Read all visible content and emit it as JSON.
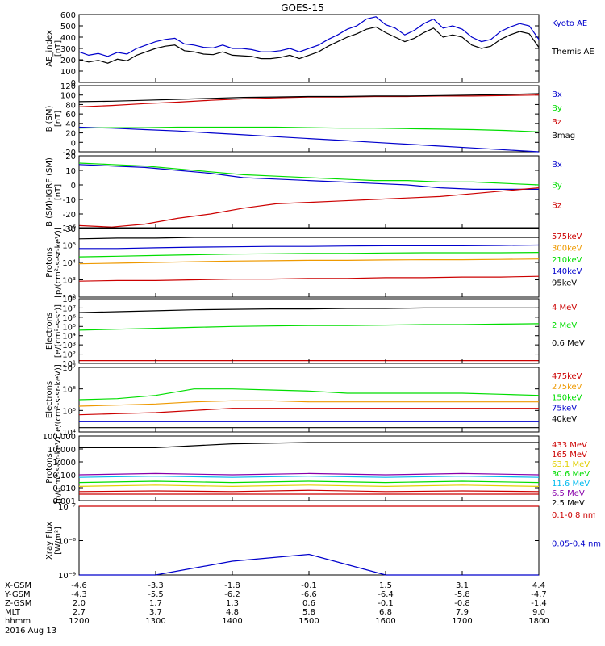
{
  "chart_data": {
    "type": "line",
    "title": "GOES-15",
    "colors": {
      "black": "#000000",
      "red": "#cc0000",
      "orange": "#ee9900",
      "yellow": "#e0d000",
      "green": "#00dd00",
      "cyan": "#00bbee",
      "blue": "#0000cc",
      "purple": "#8800aa"
    },
    "x_range": [
      "1200",
      "1800"
    ],
    "panels": [
      {
        "id": "ae",
        "ylabel": [
          "AE_index",
          "[nT]"
        ],
        "scale": "linear",
        "ylim": [
          0,
          600
        ],
        "ticks": [
          "0",
          "100",
          "200",
          "300",
          "400",
          "500",
          "600"
        ],
        "series": [
          {
            "name": "Kyoto AE",
            "color": "blue",
            "values": [
              270,
              240,
              255,
              230,
              265,
              250,
              300,
              330,
              360,
              380,
              390,
              340,
              330,
              310,
              305,
              330,
              300,
              300,
              290,
              270,
              270,
              280,
              300,
              270,
              300,
              330,
              380,
              420,
              470,
              500,
              560,
              580,
              510,
              480,
              420,
              460,
              520,
              560,
              480,
              500,
              470,
              400,
              360,
              380,
              450,
              490,
              520,
              500,
              380
            ]
          },
          {
            "name": "Themis AE",
            "color": "black",
            "values": [
              200,
              180,
              195,
              170,
              205,
              190,
              240,
              270,
              300,
              320,
              330,
              280,
              270,
              250,
              245,
              270,
              240,
              235,
              230,
              210,
              210,
              220,
              240,
              210,
              240,
              270,
              320,
              360,
              400,
              430,
              470,
              490,
              440,
              400,
              360,
              390,
              440,
              480,
              400,
              420,
              400,
              330,
              300,
              320,
              380,
              420,
              450,
              430,
              310
            ]
          }
        ]
      },
      {
        "id": "b",
        "ylabel": [
          "B (SM)",
          "[nT]"
        ],
        "scale": "linear",
        "ylim": [
          -20,
          120
        ],
        "ticks": [
          "-20",
          "0",
          "20",
          "40",
          "60",
          "80",
          "100",
          "120"
        ],
        "series": [
          {
            "name": "Bx",
            "color": "blue",
            "values": [
              32,
              30,
              27,
              24,
              20,
              16,
              12,
              8,
              4,
              0,
              -4,
              -8,
              -12,
              -16,
              -20
            ]
          },
          {
            "name": "By",
            "color": "green",
            "values": [
              30,
              31,
              31,
              32,
              32,
              32,
              32,
              31,
              30,
              30,
              29,
              28,
              27,
              25,
              22
            ]
          },
          {
            "name": "Bz",
            "color": "red",
            "values": [
              75,
              78,
              82,
              85,
              89,
              92,
              94,
              96,
              96,
              97,
              97,
              98,
              98,
              99,
              100
            ]
          },
          {
            "name": "Bmag",
            "color": "black",
            "values": [
              86,
              87,
              89,
              91,
              93,
              95,
              96,
              97,
              97,
              98,
              98,
              99,
              100,
              101,
              103
            ]
          }
        ]
      },
      {
        "id": "dB",
        "ylabel": [
          "B (SM)-IGRF (SM)",
          "[nT]"
        ],
        "scale": "linear",
        "ylim": [
          -30,
          20
        ],
        "ticks": [
          "-30",
          "-20",
          "-10",
          "0",
          "10",
          "20"
        ],
        "series": [
          {
            "name": "Bx",
            "color": "blue",
            "values": [
              14,
              13,
              12,
              10,
              8,
              5,
              4,
              3,
              2,
              1,
              0,
              -2,
              -3,
              -3,
              -3
            ]
          },
          {
            "name": "By",
            "color": "green",
            "values": [
              15,
              14,
              13,
              11,
              9,
              7,
              6,
              5,
              4,
              3,
              3,
              2,
              2,
              1,
              0
            ]
          },
          {
            "name": "Bz",
            "color": "red",
            "values": [
              -28,
              -29,
              -27,
              -23,
              -20,
              -16,
              -13,
              -12,
              -11,
              -10,
              -9,
              -8,
              -6,
              -4,
              -2
            ]
          }
        ]
      },
      {
        "id": "protons",
        "ylabel": [
          "Protons",
          "[p/(cm²-s-sr-keV)]"
        ],
        "scale": "log",
        "ylim": [
          1,
          6
        ],
        "ticks": [
          "10²",
          "10³",
          "10⁴",
          "10⁵",
          "10⁶"
        ],
        "series": [
          {
            "name": "575keV",
            "color": "red",
            "values": [
              2.15,
              2.2,
              2.2,
              2.25,
              2.3,
              2.3,
              2.35,
              2.35,
              2.4,
              2.4,
              2.45,
              2.45,
              2.5
            ]
          },
          {
            "name": "300keV",
            "color": "orange",
            "values": [
              3.4,
              3.45,
              3.5,
              3.55,
              3.6,
              3.62,
              3.65,
              3.65,
              3.68,
              3.7,
              3.7,
              3.72,
              3.75
            ]
          },
          {
            "name": "210keV",
            "color": "green",
            "values": [
              3.9,
              3.95,
              4.0,
              4.05,
              4.1,
              4.12,
              4.15,
              4.15,
              4.18,
              4.2,
              4.2,
              4.2,
              4.22
            ]
          },
          {
            "name": "140keV",
            "color": "blue",
            "values": [
              4.5,
              4.5,
              4.55,
              4.6,
              4.62,
              4.65,
              4.65,
              4.68,
              4.7,
              4.7,
              4.7,
              4.72,
              4.75
            ]
          },
          {
            "name": "95keV",
            "color": "black",
            "values": [
              5.2,
              5.25,
              5.25,
              5.3,
              5.3,
              5.3,
              5.3,
              5.3,
              5.3,
              5.3,
              5.3,
              5.3,
              5.3
            ]
          }
        ]
      },
      {
        "id": "electrons1",
        "ylabel": [
          "Electrons",
          "[e/(cm²-s-sr)]"
        ],
        "scale": "log",
        "ylim": [
          1,
          8
        ],
        "ticks": [
          "10¹",
          "10²",
          "10³",
          "10⁴",
          "10⁵",
          "10⁶",
          "10⁷",
          "10⁸"
        ],
        "series": [
          {
            "name": "4 MeV",
            "color": "red",
            "values": [
              1.3,
              1.3,
              1.3,
              1.3,
              1.3,
              1.3,
              1.3,
              1.3,
              1.3,
              1.3,
              1.3,
              1.3,
              1.3
            ]
          },
          {
            "name": "2 MeV",
            "color": "green",
            "values": [
              4.6,
              4.7,
              4.8,
              4.9,
              5.0,
              5.05,
              5.1,
              5.1,
              5.15,
              5.2,
              5.2,
              5.25,
              5.3
            ]
          },
          {
            "name": "0.6 MeV",
            "color": "black",
            "values": [
              6.5,
              6.6,
              6.7,
              6.8,
              6.85,
              6.9,
              6.9,
              6.95,
              6.95,
              7.0,
              7.0,
              7.0,
              7.0
            ]
          }
        ]
      },
      {
        "id": "electrons2",
        "ylabel": [
          "Electrons",
          "[e/(cm²-s-sr-keV)]"
        ],
        "scale": "log",
        "ylim": [
          4,
          7
        ],
        "ticks": [
          "10⁴",
          "10⁵",
          "10⁶",
          "10⁷"
        ],
        "series": [
          {
            "name": "475keV",
            "color": "red",
            "values": [
              4.8,
              4.85,
              4.9,
              5.0,
              5.1,
              5.1,
              5.1,
              5.1,
              5.1,
              5.1,
              5.1,
              5.1,
              5.1
            ]
          },
          {
            "name": "275keV",
            "color": "orange",
            "values": [
              5.2,
              5.25,
              5.3,
              5.4,
              5.45,
              5.45,
              5.4,
              5.4,
              5.4,
              5.4,
              5.4,
              5.4,
              5.4
            ]
          },
          {
            "name": "150keV",
            "color": "green",
            "values": [
              5.5,
              5.55,
              5.7,
              6.0,
              6.0,
              5.95,
              5.9,
              5.8,
              5.8,
              5.8,
              5.8,
              5.75,
              5.7
            ]
          },
          {
            "name": "75keV",
            "color": "blue",
            "values": [
              4.5,
              4.5,
              4.5,
              4.5,
              4.5,
              4.5,
              4.5,
              4.5,
              4.5,
              4.5,
              4.5,
              4.5,
              4.5
            ]
          },
          {
            "name": "40keV",
            "color": "black",
            "values": [
              4.2,
              4.2,
              4.2,
              4.2,
              4.2,
              4.2,
              4.2,
              4.2,
              4.2,
              4.2,
              4.2,
              4.2,
              4.2
            ]
          }
        ]
      },
      {
        "id": "protons2",
        "ylabel": [
          "Protons",
          "[p/(cm²-s-sr-keV)]"
        ],
        "scale": "log",
        "ylim": [
          -3,
          2
        ],
        "ticks": [
          "0.001",
          "0.010",
          "0.100",
          "1.000",
          "10.000",
          "100.000"
        ],
        "series": [
          {
            "name": "433 MeV",
            "color": "red",
            "values": [
              -2.3,
              -2.25,
              -2.3,
              -2.2,
              -2.3,
              -2.25,
              -2.3
            ]
          },
          {
            "name": "165 MeV",
            "color": "red",
            "values": [
              -2.5,
              -2.5,
              -2.5,
              -2.5,
              -2.5,
              -2.5,
              -2.5
            ]
          },
          {
            "name": "63.1 MeV",
            "color": "yellow",
            "values": [
              -1.9,
              -1.8,
              -1.9,
              -1.8,
              -1.9,
              -1.8,
              -1.9
            ]
          },
          {
            "name": "30.6 MeV",
            "color": "green",
            "values": [
              -1.6,
              -1.5,
              -1.6,
              -1.5,
              -1.6,
              -1.5,
              -1.6
            ]
          },
          {
            "name": "11.6 MeV",
            "color": "cyan",
            "values": [
              -1.2,
              -1.1,
              -1.2,
              -1.1,
              -1.2,
              -1.1,
              -1.2
            ]
          },
          {
            "name": "6.5 MeV",
            "color": "purple",
            "values": [
              -1.0,
              -0.9,
              -1.0,
              -0.9,
              -1.0,
              -0.9,
              -1.0
            ]
          },
          {
            "name": "2.5 MeV",
            "color": "black",
            "values": [
              1.1,
              1.1,
              1.4,
              1.5,
              1.5,
              1.5,
              1.5
            ]
          }
        ]
      },
      {
        "id": "xray",
        "ylabel": [
          "Xray Flux",
          "[W/m²]"
        ],
        "scale": "log",
        "ylim": [
          -9,
          -8
        ],
        "ticks": [
          "10⁻⁹",
          "10⁻⁸",
          "10⁻⁷"
        ],
        "series": [
          {
            "name": "0.1-0.8 nm",
            "color": "red",
            "values": [
              -7,
              -7,
              -7,
              -7,
              -7,
              -7,
              -7
            ]
          },
          {
            "name": "0.05-0.4 nm",
            "color": "blue",
            "values": [
              -9.2,
              -9.1,
              -8.8,
              -8.7,
              -9.1,
              -9.2,
              -9.2
            ]
          }
        ]
      }
    ],
    "footer": {
      "rows": [
        {
          "label": "X-GSM",
          "values": [
            "-4.6",
            "-3.3",
            "-1.8",
            "-0.1",
            "1.5",
            "3.1",
            "4.4"
          ]
        },
        {
          "label": "Y-GSM",
          "values": [
            "-4.3",
            "-5.5",
            "-6.2",
            "-6.6",
            "-6.4",
            "-5.8",
            "-4.7"
          ]
        },
        {
          "label": "Z-GSM",
          "values": [
            "2.0",
            "1.7",
            "1.3",
            "0.6",
            "-0.1",
            "-0.8",
            "-1.4"
          ]
        },
        {
          "label": "MLT",
          "values": [
            "2.7",
            "3.7",
            "4.8",
            "5.8",
            "6.8",
            "7.9",
            "9.0"
          ]
        },
        {
          "label": "hhmm",
          "values": [
            "1200",
            "1300",
            "1400",
            "1500",
            "1600",
            "1700",
            "1800"
          ]
        }
      ],
      "date": "2016 Aug 13"
    }
  }
}
